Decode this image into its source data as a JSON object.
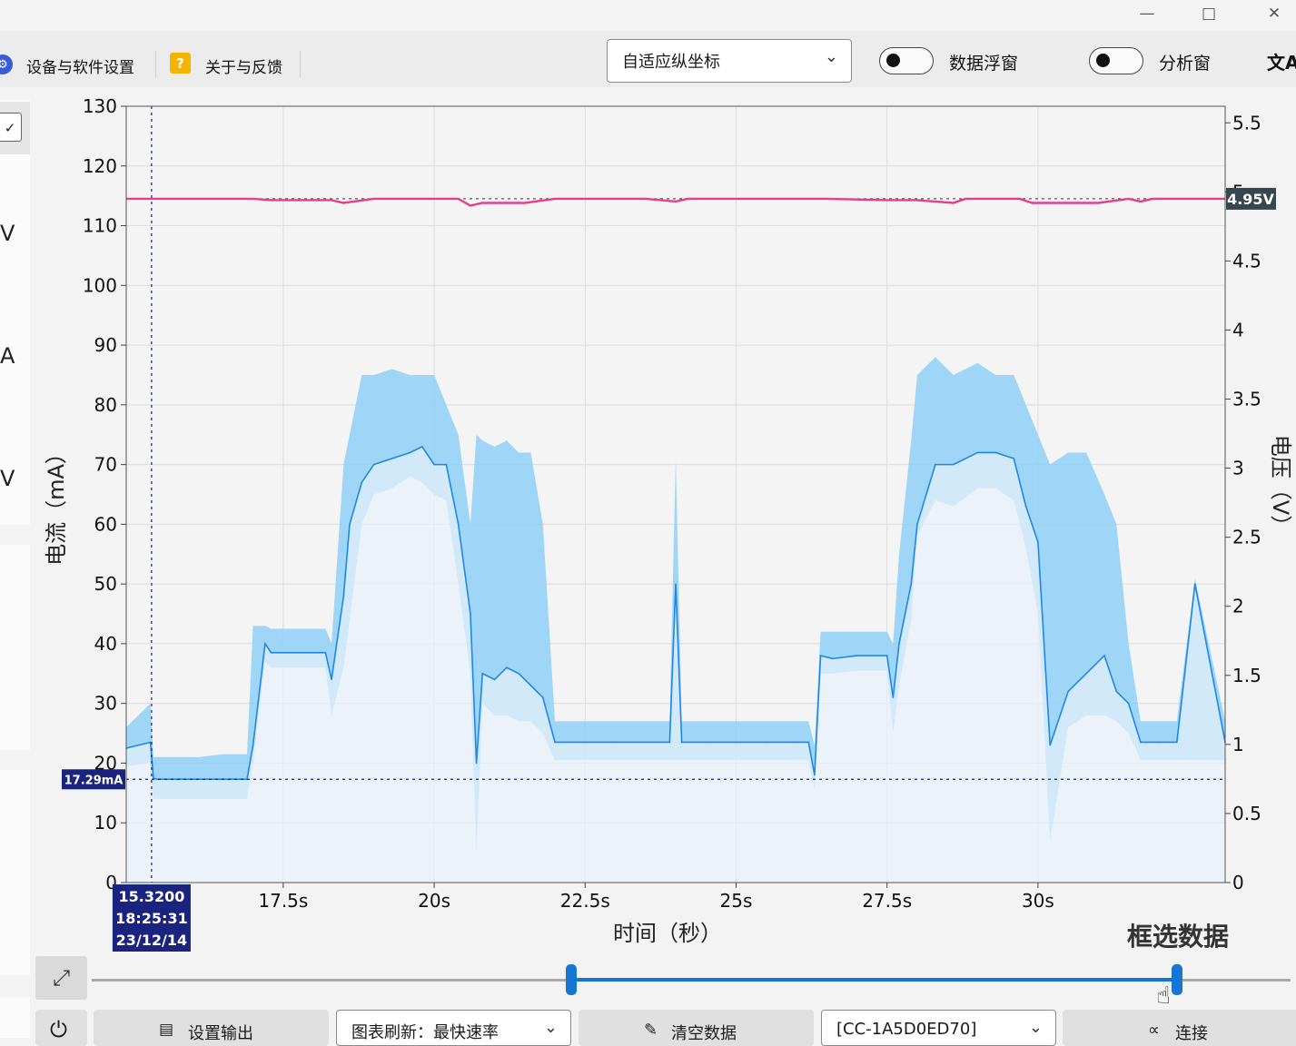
{
  "window": {
    "minimize_icon": "minimize-icon",
    "maximize_icon": "maximize-icon",
    "close_icon": "close-icon"
  },
  "toolbar": {
    "device_settings_label": "设备与软件设置",
    "about_label": "关于与反馈",
    "help_badge": "?",
    "y_scale_select": "自适应纵坐标",
    "data_float_label": "数据浮窗",
    "analysis_label": "分析窗",
    "translate_icon": "文A"
  },
  "sidebar": {
    "letters": [
      "V",
      "A",
      "V"
    ]
  },
  "chart_data": {
    "type": "line",
    "xlabel": "时间（秒）",
    "ylabel": "电流（mA）",
    "y2label": "电压（V）",
    "xlim": [
      14.9,
      33.1
    ],
    "ylim": [
      0,
      130
    ],
    "y2lim": [
      0,
      5.62
    ],
    "x_ticks": [
      17.5,
      20,
      22.5,
      25,
      27.5,
      30
    ],
    "x_tick_labels": [
      "17.5s",
      "20s",
      "22.5s",
      "25s",
      "27.5s",
      "30s"
    ],
    "y_ticks": [
      0,
      10,
      20,
      30,
      40,
      50,
      60,
      70,
      80,
      90,
      100,
      110,
      120,
      130
    ],
    "y_tick_labels": [
      "0",
      "10",
      "20",
      "30",
      "40",
      "50",
      "60",
      "70",
      "80",
      "90",
      "100",
      "110",
      "120",
      "130"
    ],
    "y2_ticks": [
      0,
      0.5,
      1,
      1.5,
      2,
      2.5,
      3,
      3.5,
      4,
      4.5,
      5,
      5.5
    ],
    "y2_tick_labels": [
      "0",
      "0.5",
      "1",
      "1.5",
      "2",
      "2.5",
      "3",
      "3.5",
      "4",
      "4.5",
      "5",
      "5.5"
    ],
    "grid": true,
    "current_series": {
      "name": "电流",
      "unit": "mA",
      "color": "#1e88e5",
      "band_color": "#8fd0f7",
      "x": [
        14.9,
        15.3,
        15.35,
        15.4,
        16.1,
        16.5,
        16.9,
        17.0,
        17.2,
        17.3,
        17.7,
        18.0,
        18.2,
        18.3,
        18.5,
        18.6,
        18.8,
        19.0,
        19.3,
        19.6,
        19.8,
        20.0,
        20.2,
        20.4,
        20.6,
        20.7,
        20.8,
        21.0,
        21.2,
        21.4,
        21.6,
        21.8,
        22.0,
        22.5,
        23.0,
        23.9,
        24.0,
        24.1,
        24.5,
        25.0,
        25.5,
        26.0,
        26.2,
        26.3,
        26.4,
        26.6,
        27.0,
        27.5,
        27.6,
        27.7,
        27.9,
        28.0,
        28.3,
        28.6,
        29.0,
        29.3,
        29.6,
        29.8,
        30.0,
        30.2,
        30.5,
        30.8,
        31.1,
        31.3,
        31.5,
        31.7,
        31.8,
        32.0,
        32.3,
        32.6,
        33.1
      ],
      "avg": [
        22.5,
        23.5,
        17.5,
        17.3,
        17.3,
        17.3,
        17.3,
        23.0,
        40.0,
        38.5,
        38.5,
        38.5,
        38.5,
        34.0,
        48.0,
        60.0,
        67.0,
        70.0,
        71.0,
        72.0,
        73.0,
        70.0,
        70.0,
        60.0,
        45.0,
        20.0,
        35.0,
        34.0,
        36.0,
        35.0,
        33.0,
        31.0,
        23.5,
        23.5,
        23.5,
        23.5,
        50.0,
        23.5,
        23.5,
        23.5,
        23.5,
        23.5,
        23.5,
        18.0,
        38.0,
        37.5,
        38.0,
        38.0,
        31.0,
        40.0,
        50.0,
        60.0,
        70.0,
        70.0,
        72.0,
        72.0,
        71.0,
        63.0,
        57.0,
        23.0,
        32.0,
        35.0,
        38.0,
        32.0,
        30.0,
        23.5,
        23.5,
        23.5,
        23.5,
        50.0,
        23.5
      ],
      "max": [
        26.0,
        30.0,
        21.0,
        21.0,
        21.0,
        21.5,
        21.5,
        43.0,
        43.0,
        42.5,
        42.5,
        42.5,
        42.5,
        40.0,
        70.0,
        75.0,
        85.0,
        85.0,
        86.0,
        85.0,
        85.0,
        85.0,
        80.0,
        75.0,
        60.0,
        75.0,
        74.0,
        73.0,
        74.0,
        72.0,
        72.0,
        60.0,
        27.0,
        27.0,
        27.0,
        27.0,
        71.0,
        27.0,
        27.0,
        27.0,
        27.0,
        27.0,
        27.0,
        23.0,
        42.0,
        42.0,
        42.0,
        42.0,
        40.0,
        55.0,
        74.0,
        85.0,
        88.0,
        85.0,
        87.0,
        85.0,
        85.0,
        80.0,
        75.0,
        70.0,
        72.0,
        72.0,
        65.0,
        60.0,
        40.0,
        27.0,
        27.0,
        27.0,
        27.0,
        51.0,
        27.0
      ],
      "min": [
        19.5,
        20.0,
        14.0,
        14.0,
        14.0,
        14.0,
        14.0,
        20.0,
        37.0,
        36.0,
        36.0,
        36.0,
        36.0,
        28.0,
        36.0,
        44.0,
        60.0,
        65.0,
        66.0,
        68.0,
        67.0,
        65.0,
        64.0,
        50.0,
        35.0,
        5.0,
        30.0,
        28.0,
        28.0,
        27.0,
        27.0,
        25.0,
        20.5,
        20.5,
        20.5,
        20.5,
        20.5,
        20.5,
        20.5,
        20.5,
        20.5,
        20.5,
        20.5,
        15.5,
        35.0,
        35.0,
        35.5,
        35.5,
        25.0,
        33.0,
        44.0,
        58.0,
        64.0,
        63.0,
        66.0,
        66.0,
        64.0,
        56.0,
        45.0,
        7.0,
        26.0,
        28.0,
        28.0,
        27.0,
        25.0,
        20.5,
        20.5,
        20.5,
        20.5,
        20.5,
        20.5
      ]
    },
    "voltage_series": {
      "name": "电压",
      "unit": "V",
      "color": "#e43f8c",
      "x": [
        14.9,
        17.0,
        17.3,
        18.0,
        18.3,
        18.5,
        19.0,
        20.0,
        20.4,
        20.6,
        20.8,
        21.0,
        21.5,
        22.0,
        22.5,
        23.5,
        24.0,
        24.2,
        25.0,
        26.0,
        26.5,
        27.5,
        28.0,
        28.6,
        28.8,
        29.5,
        29.7,
        29.9,
        30.2,
        30.5,
        31.0,
        31.5,
        31.7,
        31.9,
        32.5,
        33.1
      ],
      "y": [
        4.95,
        4.95,
        4.94,
        4.94,
        4.94,
        4.92,
        4.95,
        4.95,
        4.95,
        4.9,
        4.92,
        4.92,
        4.92,
        4.95,
        4.95,
        4.95,
        4.93,
        4.95,
        4.95,
        4.95,
        4.95,
        4.94,
        4.94,
        4.92,
        4.95,
        4.95,
        4.95,
        4.92,
        4.92,
        4.92,
        4.92,
        4.95,
        4.93,
        4.95,
        4.95,
        4.95
      ]
    },
    "voltage_ref": 4.95,
    "voltage_ref_label": "4.95V",
    "current_ref": 17.29,
    "current_ref_label": "17.29mA",
    "cursor": {
      "x": 15.32,
      "labels": [
        "15.3200",
        "18:25:31",
        "23/12/14"
      ]
    }
  },
  "frame_select_label": "框选数据",
  "range_slider": {
    "start_fraction": 0.4,
    "end_fraction": 0.905
  },
  "bottom": {
    "power_icon": "power-icon",
    "set_output_label": "设置输出",
    "refresh_label": "图表刷新：最快速率",
    "clear_label": "清空数据",
    "port_label": "[CC-1A5D0ED70]",
    "connect_label": "连接"
  }
}
